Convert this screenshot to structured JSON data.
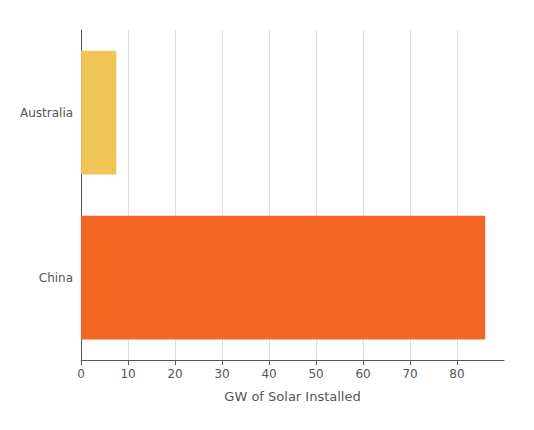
{
  "chart_data": {
    "type": "bar",
    "orientation": "horizontal",
    "xlabel": "GW of Solar Installed",
    "categories": [
      "China",
      "Australia"
    ],
    "values": [
      86,
      7.5
    ],
    "colors": [
      "#F26522",
      "#F0C456"
    ],
    "xlim": [
      0,
      90
    ],
    "xticks": [
      0,
      10,
      20,
      30,
      40,
      50,
      60,
      70,
      80
    ],
    "grid": true
  }
}
